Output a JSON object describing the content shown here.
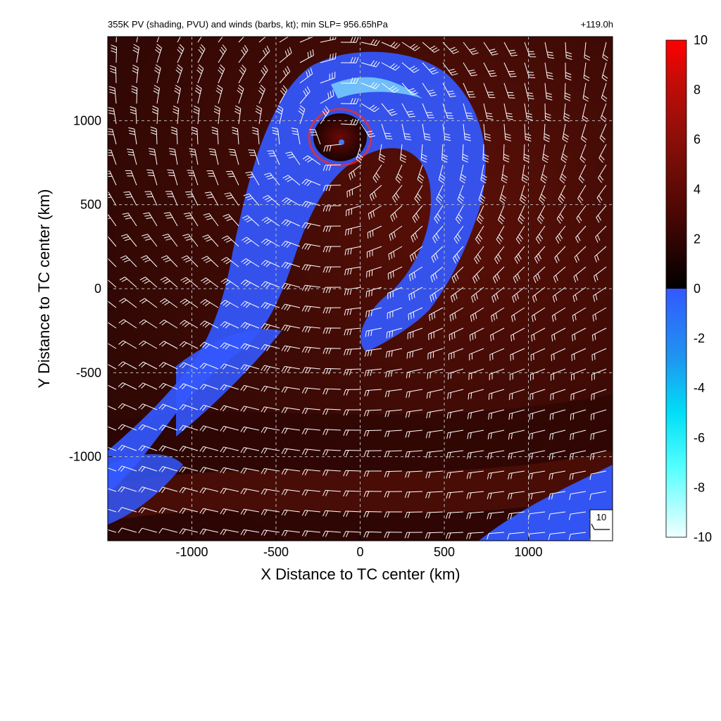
{
  "chart_data": {
    "type": "heatmap",
    "title": "355K PV (shading, PVU) and winds (barbs, kt); min SLP= 956.65hPa",
    "lead_time": "+119.0h",
    "xlabel": "X Distance to TC center (km)",
    "ylabel": "Y Distance to TC center (km)",
    "xlim": [
      -1500,
      1500
    ],
    "ylim": [
      -1500,
      1500
    ],
    "xticks": [
      -1000,
      -500,
      0,
      500,
      1000
    ],
    "yticks": [
      -1000,
      -500,
      0,
      500,
      1000
    ],
    "xtick_labels": [
      "-1000",
      "-500",
      "0",
      "500",
      "1000"
    ],
    "ytick_labels": [
      "-1000",
      "-500",
      "0",
      "500",
      "1000"
    ],
    "grid": true,
    "colorbar": {
      "min": -10,
      "max": 10,
      "ticks": [
        10,
        8,
        6,
        4,
        2,
        0,
        -2,
        -4,
        -6,
        -8,
        -10
      ],
      "tick_labels": [
        "10",
        "8",
        "6",
        "4",
        "2",
        "0",
        "-2",
        "-4",
        "-6",
        "-8",
        "-10"
      ],
      "positive_colors": [
        "#000000",
        "#3a0503",
        "#6e0d06",
        "#a5120a",
        "#d80d07",
        "#ff0000"
      ],
      "negative_colors": [
        "#3358ff",
        "#1e96f0",
        "#00d2f5",
        "#00ffff",
        "#80ffff",
        "#f2ffff"
      ]
    },
    "reference_barb": {
      "label": "10",
      "speed_kt": 10
    },
    "wind_barbs": "regular grid of wind barbs spanning the domain, cyclonic circulation around the storm"
  }
}
